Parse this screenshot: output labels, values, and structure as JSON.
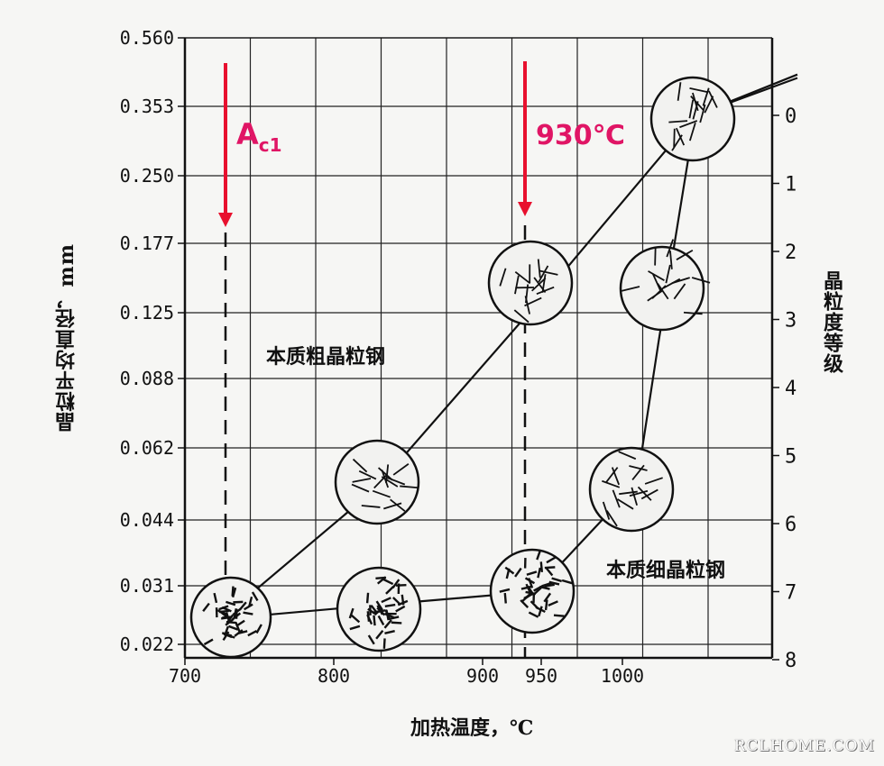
{
  "chart_data": {
    "type": "line",
    "xlabel": "加热温度，℃",
    "ylabel_left": "晶粒平均直径，mm",
    "ylabel_right": "晶粒度等级",
    "x_ticks": [
      "700",
      "800",
      "900",
      "950",
      "1000"
    ],
    "x_range": [
      700,
      1120
    ],
    "y_left_ticks": [
      "0.560",
      "0.353",
      "0.250",
      "0.177",
      "0.125",
      "0.088",
      "0.062",
      "0.044",
      "0.031",
      "0.022"
    ],
    "y_right_ticks": [
      "0",
      "1",
      "2",
      "3",
      "4",
      "5",
      "6",
      "7",
      "8"
    ],
    "grain_size_range": [
      -1,
      8
    ],
    "grid": true,
    "series": [
      {
        "name": "本质粗晶粒钢",
        "points": [
          [
            725,
            7.4
          ],
          [
            830,
            5.5
          ],
          [
            940,
            2.8
          ],
          [
            1050,
            0.0
          ],
          [
            1120,
            -0.55
          ]
        ]
      },
      {
        "name": "本质细晶粒钢",
        "points": [
          [
            725,
            7.4
          ],
          [
            830,
            7.2
          ],
          [
            940,
            7.0
          ],
          [
            1010,
            5.4
          ],
          [
            1025,
            3.3
          ],
          [
            1050,
            0.0
          ],
          [
            1120,
            -0.6
          ]
        ]
      }
    ],
    "annotations": {
      "ac1": {
        "x": 730,
        "main": "A",
        "sub": "c1"
      },
      "t930": {
        "x": 930,
        "label": "930℃"
      }
    }
  },
  "colors": {
    "arrow": "#e8102e",
    "line": "#111111",
    "grid": "#222222",
    "background": "#f6f6f4"
  },
  "watermark": "RCLHOME.COM"
}
